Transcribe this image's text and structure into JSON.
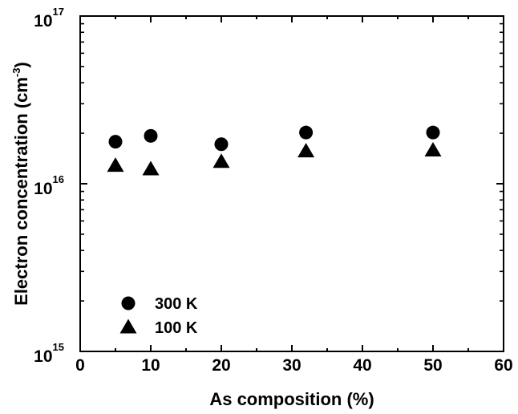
{
  "chart_data": {
    "type": "scatter",
    "xlabel": "As composition (%)",
    "ylabel_main": "Electron concentration (cm",
    "ylabel_sup": "-3",
    "ylabel_close": ")",
    "xlim": [
      0,
      60
    ],
    "ylim": [
      1000000000000000.0,
      1e+17
    ],
    "yscale": "log",
    "x_ticks": [
      "0",
      "10",
      "20",
      "30",
      "40",
      "50",
      "60"
    ],
    "y_ticks": [
      {
        "value": 1000000000000000.0,
        "base": "10",
        "exp": "15"
      },
      {
        "value": 1e+16,
        "base": "10",
        "exp": "16"
      },
      {
        "value": 1e+17,
        "base": "10",
        "exp": "17"
      }
    ],
    "grid": false,
    "legend_position": "lower-left",
    "series": [
      {
        "name": "300 K",
        "marker": "circle",
        "x": [
          5,
          10,
          20,
          32,
          50
        ],
        "y": [
          1.78e+16,
          1.93e+16,
          1.72e+16,
          2.02e+16,
          2.02e+16
        ]
      },
      {
        "name": "100 K",
        "marker": "triangle",
        "x": [
          5,
          10,
          20,
          32,
          50
        ],
        "y": [
          1.28e+16,
          1.22e+16,
          1.35e+16,
          1.56e+16,
          1.58e+16
        ]
      }
    ]
  }
}
